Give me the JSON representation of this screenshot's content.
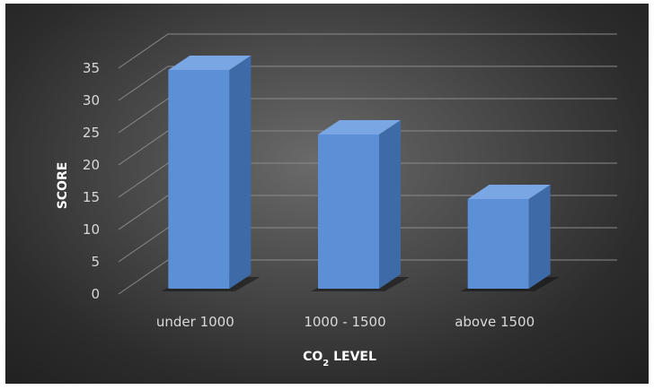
{
  "chart_data": {
    "type": "bar",
    "style": "3d-column",
    "categories": [
      "under 1000",
      "1000 - 1500",
      "above 1500"
    ],
    "values": [
      35,
      25,
      15
    ],
    "ylim": [
      0,
      35
    ],
    "yticks": [
      0,
      5,
      10,
      15,
      20,
      25,
      30,
      35
    ],
    "ylabel": "SCORE",
    "xlabel": {
      "main": "CO",
      "subscript": "2",
      "rest": " LEVEL"
    },
    "grid": true,
    "legend": "none",
    "colors": {
      "bar_front": "#5b8fd6",
      "bar_side": "#3e6aa8",
      "bar_top": "#7aa6e3",
      "grid": "#8a8a8a",
      "text": "#d9d9d9"
    }
  }
}
